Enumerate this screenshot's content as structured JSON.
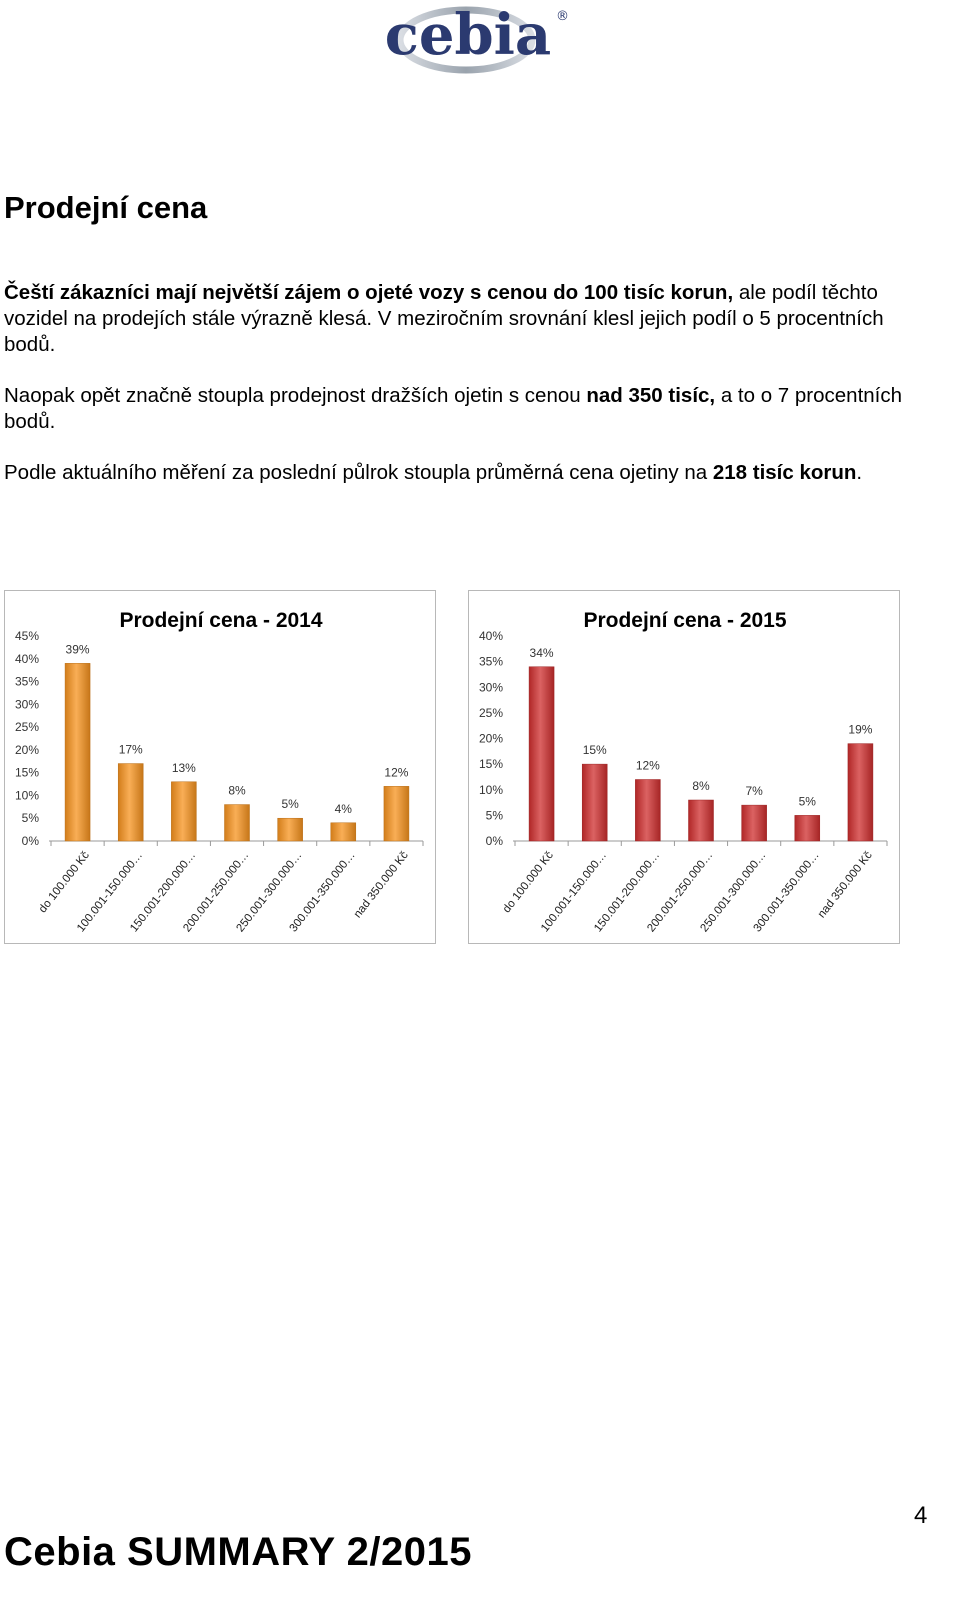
{
  "logo": {
    "text": "cebia",
    "registered": "®"
  },
  "heading": "Prodejní cena",
  "paragraphs": [
    {
      "b1": "Čeští zákazníci mají největší zájem o ojeté vozy s cenou do 100 tisíc korun,",
      "t1": " ale podíl těchto vozidel na prodejích stále výrazně klesá. V meziročním srovnání klesl jejich podíl o 5 procentních bodů."
    },
    {
      "t1": "Naopak opět značně stoupla prodejnost dražších ojetin s cenou ",
      "b1": "nad 350 tisíc,",
      "t2": " a to o 7 procentních bodů."
    },
    {
      "t1": "Podle aktuálního měření za poslední půlrok stoupla průměrná cena ojetiny na ",
      "b1": "218 tisíc korun",
      "t2": "."
    }
  ],
  "chart_data": [
    {
      "type": "bar",
      "title": "Prodejní cena - 2014",
      "categories": [
        "do 100.000 Kč",
        "100.001-150.000…",
        "150.001-200.000…",
        "200.001-250.000…",
        "250.001-300.000…",
        "300.001-350.000…",
        "nad 350.000 Kč"
      ],
      "values": [
        39,
        17,
        13,
        8,
        5,
        4,
        12
      ],
      "data_labels": [
        "39%",
        "17%",
        "13%",
        "8%",
        "5%",
        "4%",
        "12%"
      ],
      "ylim": [
        0,
        45
      ],
      "yticks": [
        "0%",
        "5%",
        "10%",
        "15%",
        "20%",
        "25%",
        "30%",
        "35%",
        "40%",
        "45%"
      ],
      "grid": false,
      "legend": "none",
      "color": "#f7931e"
    },
    {
      "type": "bar",
      "title": "Prodejní cena - 2015",
      "categories": [
        "do 100.000 Kč",
        "100.001-150.000…",
        "150.001-200.000…",
        "200.001-250.000…",
        "250.001-300.000…",
        "300.001-350.000…",
        "nad 350.000 Kč"
      ],
      "values": [
        34,
        15,
        12,
        8,
        7,
        5,
        19
      ],
      "data_labels": [
        "34%",
        "15%",
        "12%",
        "8%",
        "7%",
        "5%",
        "19%"
      ],
      "ylim": [
        0,
        40
      ],
      "yticks": [
        "0%",
        "5%",
        "10%",
        "15%",
        "20%",
        "25%",
        "30%",
        "35%",
        "40%"
      ],
      "grid": false,
      "legend": "none",
      "color": "#cf2e2e"
    }
  ],
  "footer": "Cebia SUMMARY 2/2015",
  "page_number": "4"
}
